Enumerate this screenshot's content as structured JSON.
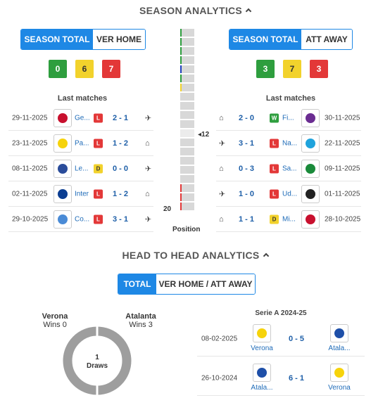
{
  "season": {
    "title": "SEASON ANALYTICS",
    "home": {
      "tabs": [
        "SEASON TOTAL",
        "VER HOME"
      ],
      "counts": {
        "w": "0",
        "d": "6",
        "l": "7"
      },
      "last_title": "Last matches",
      "matches": [
        {
          "date": "29-11-2025",
          "team": "Ge...",
          "res": "L",
          "score": "2 - 1",
          "icon": "plane-icon",
          "color": "#c8102e"
        },
        {
          "date": "23-11-2025",
          "team": "Pa...",
          "res": "L",
          "score": "1 - 2",
          "icon": "home-icon",
          "color": "#f6d30b"
        },
        {
          "date": "08-11-2025",
          "team": "Le...",
          "res": "D",
          "score": "0 - 0",
          "icon": "plane-icon",
          "color": "#2a4c9a"
        },
        {
          "date": "02-11-2025",
          "team": "Inter",
          "res": "L",
          "score": "1 - 2",
          "icon": "home-icon",
          "color": "#0b3d91"
        },
        {
          "date": "29-10-2025",
          "team": "Co...",
          "res": "L",
          "score": "3 - 1",
          "icon": "plane-icon",
          "color": "#4a8bd6"
        }
      ]
    },
    "away": {
      "tabs": [
        "SEASON TOTAL",
        "ATT AWAY"
      ],
      "counts": {
        "w": "3",
        "d": "7",
        "l": "3"
      },
      "last_title": "Last matches",
      "matches": [
        {
          "date": "30-11-2025",
          "team": "Fi...",
          "res": "W",
          "score": "2 - 0",
          "icon": "home-icon",
          "color": "#6a2c91"
        },
        {
          "date": "22-11-2025",
          "team": "Na...",
          "res": "L",
          "score": "3 - 1",
          "icon": "plane-icon",
          "color": "#1fa3dc"
        },
        {
          "date": "09-11-2025",
          "team": "Sa...",
          "res": "L",
          "score": "0 - 3",
          "icon": "home-icon",
          "color": "#1a8a3a"
        },
        {
          "date": "01-11-2025",
          "team": "Ud...",
          "res": "L",
          "score": "1 - 0",
          "icon": "plane-icon",
          "color": "#222222"
        },
        {
          "date": "28-10-2025",
          "team": "Mi...",
          "res": "D",
          "score": "1 - 1",
          "icon": "home-icon",
          "color": "#c8102e"
        }
      ]
    },
    "position": {
      "label": "Position",
      "total": 20,
      "highlight": 12,
      "markers": [
        {
          "pos": 1,
          "color": "#2e9e3e"
        },
        {
          "pos": 2,
          "color": "#2e9e3e"
        },
        {
          "pos": 3,
          "color": "#2e9e3e"
        },
        {
          "pos": 4,
          "color": "#2e9e3e"
        },
        {
          "pos": 5,
          "color": "#1e3fbf"
        },
        {
          "pos": 6,
          "color": "#2e9e3e"
        },
        {
          "pos": 7,
          "color": "#f2d22c"
        },
        {
          "pos": 18,
          "color": "#e33838"
        },
        {
          "pos": 19,
          "color": "#e33838"
        },
        {
          "pos": 20,
          "color": "#e33838"
        }
      ],
      "marker_12": "12",
      "marker_20": "20"
    }
  },
  "h2h": {
    "title": "HEAD TO HEAD ANALYTICS",
    "tabs": [
      "TOTAL",
      "VER HOME / ATT AWAY"
    ],
    "home_name": "Verona",
    "home_wins": "Wins 0",
    "away_name": "Atalanta",
    "away_wins": "Wins 3",
    "draws_num": "1",
    "draws_label": "Draws",
    "competition": "Serie A 2024-25",
    "matches": [
      {
        "date": "08-02-2025",
        "home": "Verona",
        "score": "0 - 5",
        "away": "Atala...",
        "home_color": "#f6d30b",
        "away_color": "#1e4fa8"
      },
      {
        "date": "26-10-2024",
        "home": "Atala...",
        "score": "6 - 1",
        "away": "Verona",
        "home_color": "#1e4fa8",
        "away_color": "#f6d30b"
      }
    ]
  }
}
